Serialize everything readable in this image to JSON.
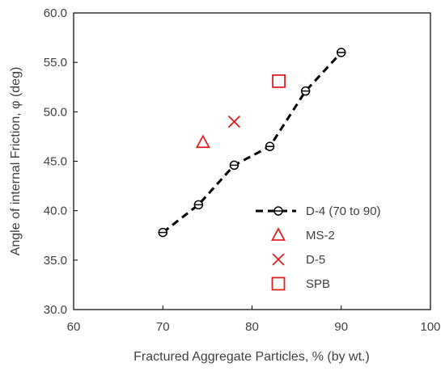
{
  "chart_data": {
    "type": "scatter",
    "xlabel": "Fractured Aggregate Particles, % (by wt.)",
    "ylabel": "Angle of internal Friction, φ (deg)",
    "xlim": [
      60,
      100
    ],
    "ylim": [
      30,
      60
    ],
    "x_ticks": [
      "60",
      "70",
      "80",
      "90",
      "100"
    ],
    "y_ticks": [
      "30.0",
      "35.0",
      "40.0",
      "45.0",
      "50.0",
      "55.0",
      "60.0"
    ],
    "grid": false,
    "legend_position": "lower-right",
    "series": [
      {
        "name": "D-4 (70 to 90)",
        "marker": "circle",
        "line": "dashed",
        "color": "#000000",
        "points": [
          [
            70,
            37.8
          ],
          [
            74,
            40.6
          ],
          [
            78,
            44.6
          ],
          [
            82,
            46.5
          ],
          [
            86,
            52.1
          ],
          [
            90,
            56.0
          ]
        ]
      },
      {
        "name": "MS-2",
        "marker": "triangle",
        "line": "none",
        "color": "#e02020",
        "points": [
          [
            74.5,
            46.9
          ]
        ]
      },
      {
        "name": "D-5",
        "marker": "x",
        "line": "none",
        "color": "#e02020",
        "points": [
          [
            78,
            49.0
          ]
        ]
      },
      {
        "name": "SPB",
        "marker": "square",
        "line": "none",
        "color": "#e02020",
        "points": [
          [
            83,
            53.1
          ]
        ]
      }
    ]
  }
}
